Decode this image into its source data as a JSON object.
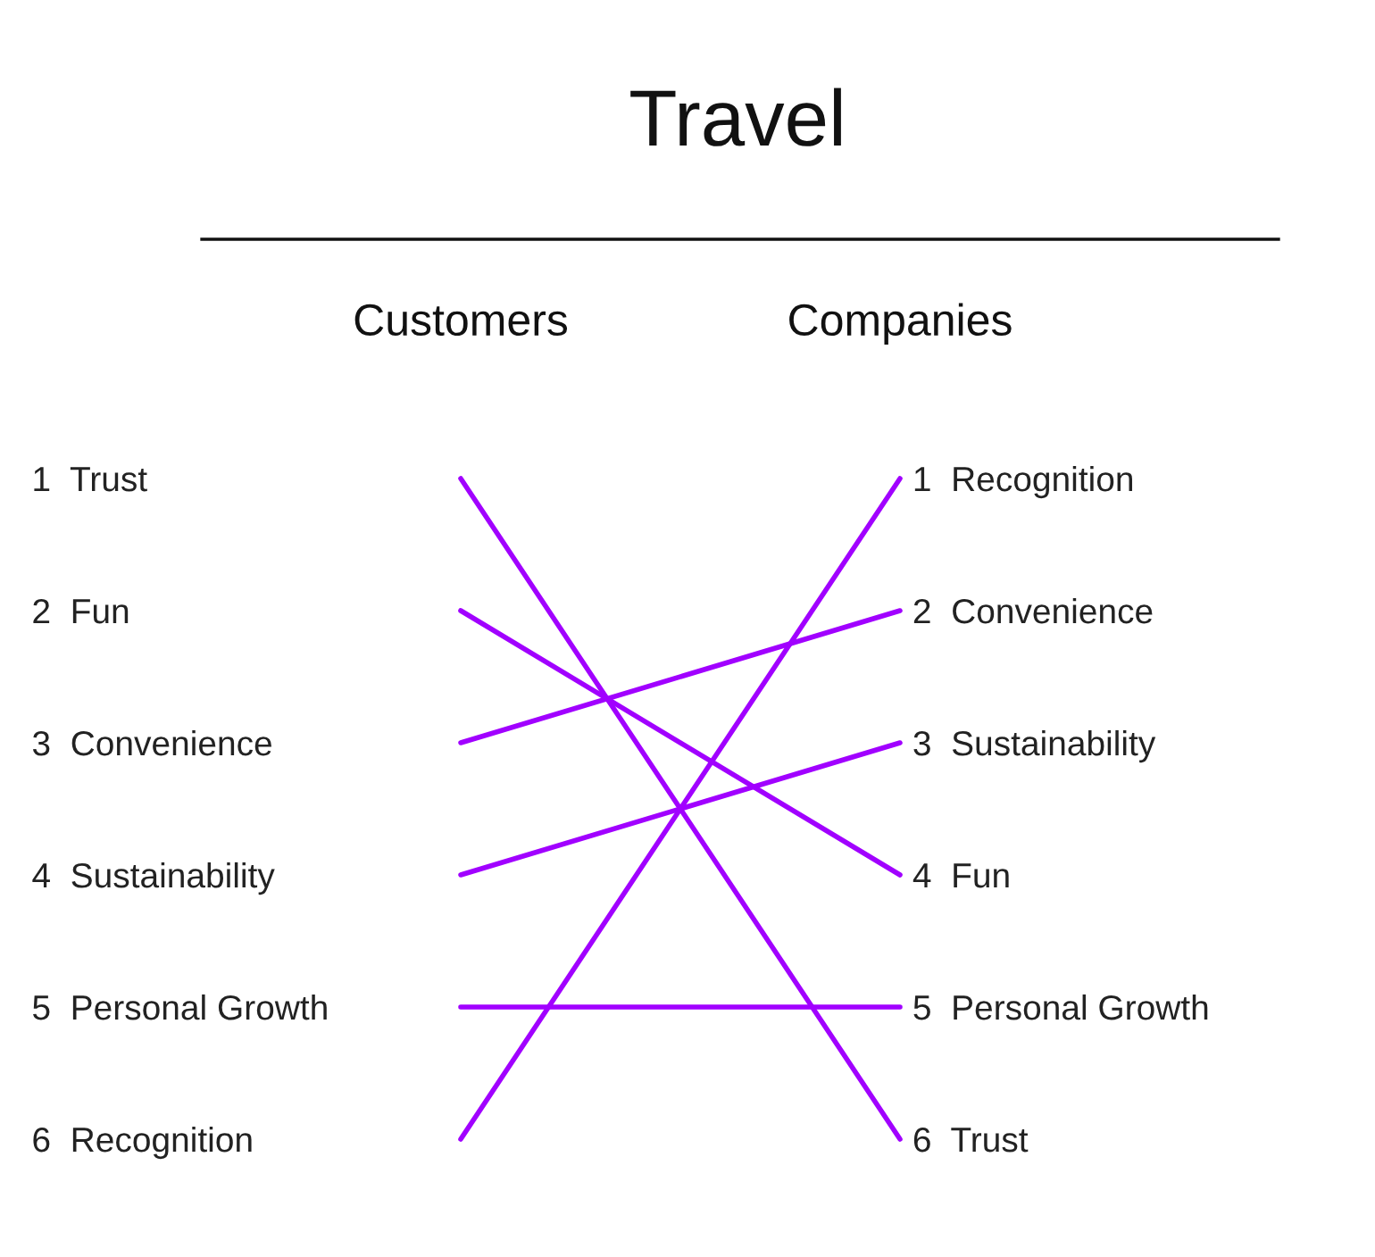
{
  "chart_data": {
    "type": "line",
    "title": "Travel",
    "categories": [
      "Customers",
      "Companies"
    ],
    "series": [
      {
        "color": "#a100ff",
        "values": [
          1,
          6
        ]
      },
      {
        "color": "#a100ff",
        "values": [
          2,
          4
        ]
      },
      {
        "color": "#a100ff",
        "values": [
          3,
          2
        ]
      },
      {
        "color": "#a100ff",
        "values": [
          4,
          3
        ]
      },
      {
        "color": "#a100ff",
        "values": [
          5,
          5
        ]
      },
      {
        "color": "#a100ff",
        "values": [
          6,
          1
        ]
      }
    ],
    "ylim": [
      6,
      1
    ],
    "yticks": [
      {
        "value": 1,
        "label": "1  Trust"
      },
      {
        "value": 2,
        "label": "2  Fun"
      },
      {
        "value": 3,
        "label": "3  Convenience"
      },
      {
        "value": 4,
        "label": "4  Sustainability"
      },
      {
        "value": 5,
        "label": "5  Personal Growth"
      },
      {
        "value": 6,
        "label": "6  Recognition"
      }
    ],
    "y2lim": [
      6,
      1
    ],
    "y2ticks": [
      {
        "value": 1,
        "label": "1  Recognition"
      },
      {
        "value": 2,
        "label": "2  Convenience"
      },
      {
        "value": 3,
        "label": "3  Sustainability"
      },
      {
        "value": 4,
        "label": "4  Fun"
      },
      {
        "value": 5,
        "label": "5  Personal Growth"
      },
      {
        "value": 6,
        "label": "6  Trust"
      }
    ],
    "grid": false,
    "legend": false,
    "marker": "none",
    "line_style": "solid"
  }
}
